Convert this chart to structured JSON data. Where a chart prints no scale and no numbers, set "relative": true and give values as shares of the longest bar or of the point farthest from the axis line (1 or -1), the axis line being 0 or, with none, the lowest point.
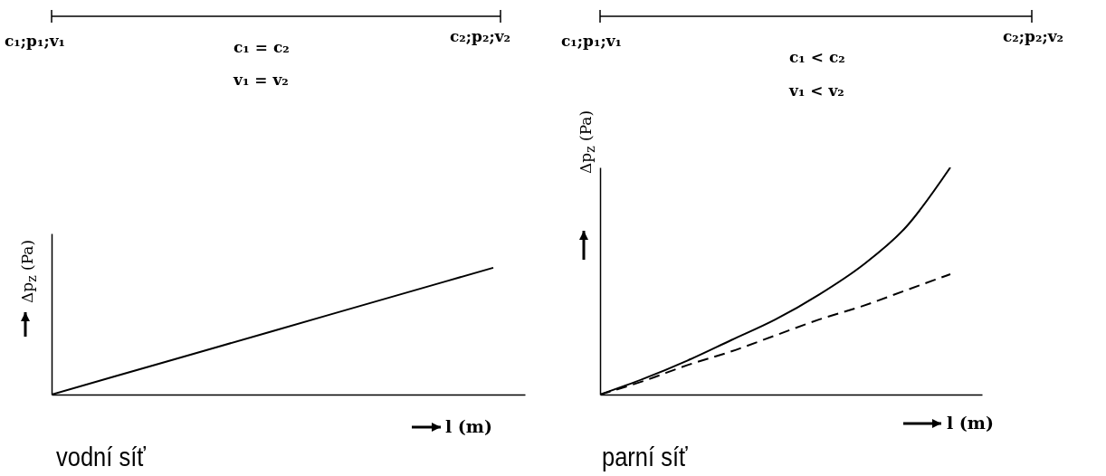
{
  "chart_data": [
    {
      "type": "line",
      "title": "vodní síť",
      "xlabel": "l (m)",
      "ylabel": "Δp$_{z}$ (Pa)",
      "relative": true,
      "marker": "none",
      "categories": [
        null,
        null,
        null,
        null,
        null
      ],
      "series": [
        {
          "color": "#000000",
          "line_style": "solid",
          "values": [
            0,
            0.25,
            0.5,
            0.75,
            1
          ]
        }
      ],
      "annotations": [
        "c₁;p₁;v₁",
        "c₂;p₂;v₂",
        "c₁ = c₂",
        "v₁ = v₂"
      ]
    },
    {
      "type": "line",
      "title": "parní síť",
      "xlabel": "l (m)",
      "ylabel": "Δp$_{z}$ (Pa)",
      "relative": true,
      "marker": "none",
      "categories": [
        null,
        null,
        null,
        null,
        null,
        null,
        null,
        null,
        null
      ],
      "series": [
        {
          "color": "#000000",
          "line_style": "solid",
          "values": [
            0,
            0.07,
            0.15,
            0.24,
            0.33,
            0.44,
            0.57,
            0.74,
            1
          ]
        },
        {
          "color": "#000000",
          "line_style": "dashed",
          "values": [
            0,
            0.06,
            0.13,
            0.19,
            0.26,
            0.33,
            0.39,
            0.46,
            0.53
          ]
        }
      ],
      "annotations": [
        "c₁;p₁;v₁",
        "c₂;p₂;v₂",
        "c₁ < c₂",
        "v₁ < v₂"
      ]
    }
  ]
}
